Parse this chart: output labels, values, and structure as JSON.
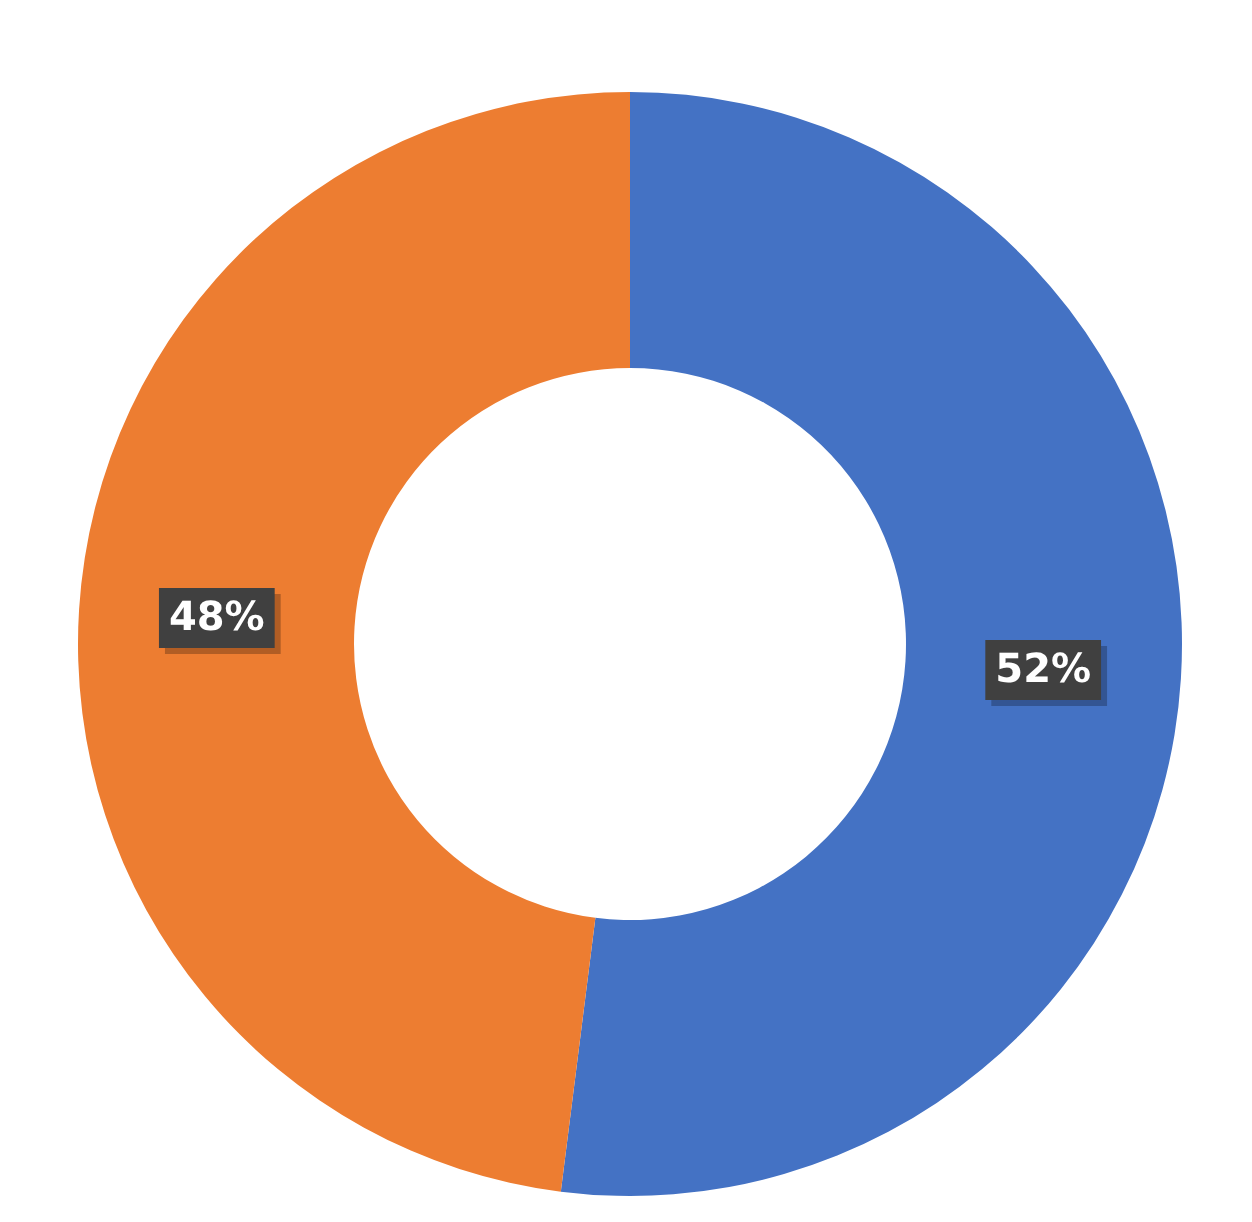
{
  "chart_data": {
    "type": "donut",
    "categories": [
      null,
      null
    ],
    "values": [
      52,
      48
    ],
    "colors": [
      "#4472c4",
      "#ed7d31"
    ],
    "value_labels": [
      "52%",
      "48%"
    ],
    "legend": false
  }
}
